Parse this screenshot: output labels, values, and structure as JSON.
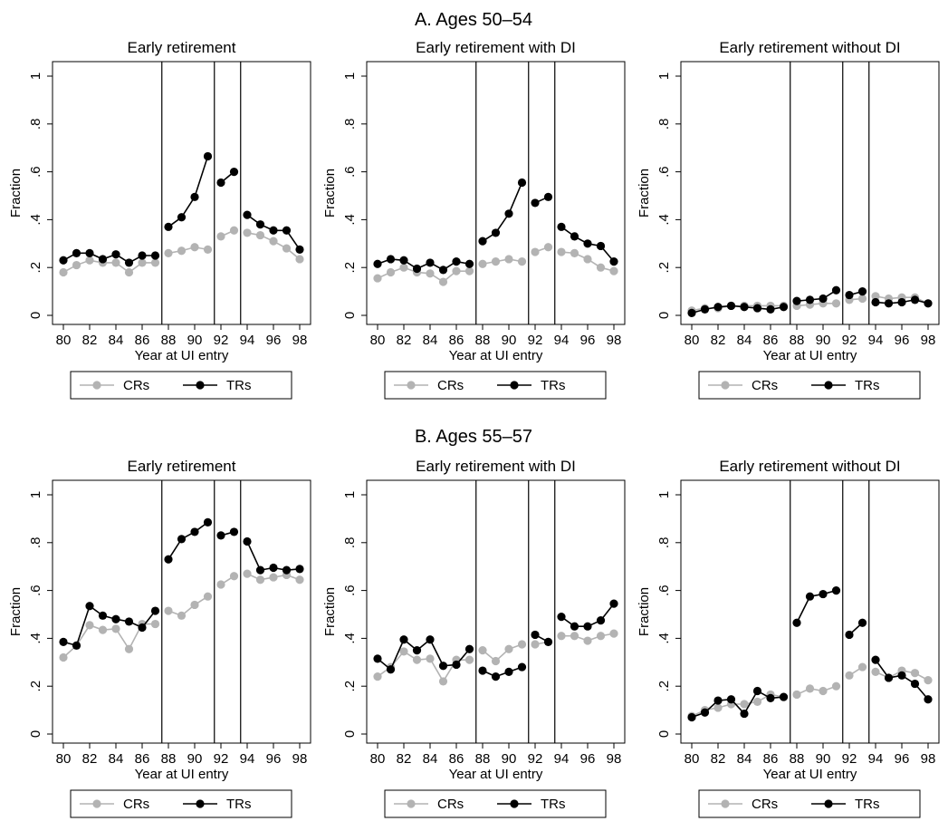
{
  "figure": {
    "panel_titles": [
      "A. Ages 50–54",
      "B. Ages 55–57"
    ],
    "legend": [
      "CRs",
      "TRs"
    ],
    "series_colors": {
      "CRs": "#b3b3b3",
      "TRs": "#000000"
    }
  },
  "chart_data": [
    {
      "type": "line",
      "panel": "A. Ages 50–54",
      "title": "Early retirement",
      "xlabel": "Year at UI entry",
      "ylabel": "Fraction",
      "xlim": [
        80,
        98
      ],
      "ylim": [
        0,
        1
      ],
      "xticks": [
        "80",
        "82",
        "84",
        "86",
        "88",
        "90",
        "92",
        "94",
        "96",
        "98"
      ],
      "yticks": [
        "0",
        ".2",
        ".4",
        ".6",
        ".8",
        "1"
      ],
      "vlines": [
        87.5,
        91.5,
        93.5
      ],
      "grid": false,
      "legend_position": "bottom",
      "series": [
        {
          "name": "CRs",
          "x": [
            80,
            81,
            82,
            83,
            84,
            85,
            86,
            87,
            88,
            89,
            90,
            91,
            92,
            93,
            94,
            95,
            96,
            97,
            98
          ],
          "values": [
            0.18,
            0.21,
            0.23,
            0.22,
            0.22,
            0.18,
            0.22,
            0.22,
            0.26,
            0.27,
            0.285,
            0.275,
            0.33,
            0.355,
            0.345,
            0.335,
            0.31,
            0.28,
            0.235
          ]
        },
        {
          "name": "TRs",
          "x": [
            80,
            81,
            82,
            83,
            84,
            85,
            86,
            87,
            88,
            89,
            90,
            91,
            92,
            93,
            94,
            95,
            96,
            97,
            98
          ],
          "values": [
            0.23,
            0.26,
            0.26,
            0.235,
            0.255,
            0.22,
            0.25,
            0.25,
            0.37,
            0.41,
            0.495,
            0.665,
            0.555,
            0.6,
            0.42,
            0.38,
            0.355,
            0.355,
            0.275
          ]
        }
      ]
    },
    {
      "type": "line",
      "panel": "A. Ages 50–54",
      "title": "Early retirement with DI",
      "xlabel": "Year at UI entry",
      "ylabel": "Fraction",
      "xlim": [
        80,
        98
      ],
      "ylim": [
        0,
        1
      ],
      "xticks": [
        "80",
        "82",
        "84",
        "86",
        "88",
        "90",
        "92",
        "94",
        "96",
        "98"
      ],
      "yticks": [
        "0",
        ".2",
        ".4",
        ".6",
        ".8",
        "1"
      ],
      "vlines": [
        87.5,
        91.5,
        93.5
      ],
      "grid": false,
      "legend_position": "bottom",
      "series": [
        {
          "name": "CRs",
          "x": [
            80,
            81,
            82,
            83,
            84,
            85,
            86,
            87,
            88,
            89,
            90,
            91,
            92,
            93,
            94,
            95,
            96,
            97,
            98
          ],
          "values": [
            0.155,
            0.18,
            0.2,
            0.18,
            0.175,
            0.14,
            0.185,
            0.185,
            0.215,
            0.225,
            0.235,
            0.225,
            0.265,
            0.285,
            0.265,
            0.26,
            0.235,
            0.2,
            0.185
          ]
        },
        {
          "name": "TRs",
          "x": [
            80,
            81,
            82,
            83,
            84,
            85,
            86,
            87,
            88,
            89,
            90,
            91,
            92,
            93,
            94,
            95,
            96,
            97,
            98
          ],
          "values": [
            0.215,
            0.235,
            0.23,
            0.195,
            0.22,
            0.19,
            0.225,
            0.215,
            0.31,
            0.345,
            0.425,
            0.555,
            0.47,
            0.495,
            0.37,
            0.33,
            0.3,
            0.29,
            0.225
          ]
        }
      ]
    },
    {
      "type": "line",
      "panel": "A. Ages 50–54",
      "title": "Early retirement without DI",
      "xlabel": "Year at UI entry",
      "ylabel": "Fraction",
      "xlim": [
        80,
        98
      ],
      "ylim": [
        0,
        1
      ],
      "xticks": [
        "80",
        "82",
        "84",
        "86",
        "88",
        "90",
        "92",
        "94",
        "96",
        "98"
      ],
      "yticks": [
        "0",
        ".2",
        ".4",
        ".6",
        ".8",
        "1"
      ],
      "vlines": [
        87.5,
        91.5,
        93.5
      ],
      "grid": false,
      "legend_position": "bottom",
      "series": [
        {
          "name": "CRs",
          "x": [
            80,
            81,
            82,
            83,
            84,
            85,
            86,
            87,
            88,
            89,
            90,
            91,
            92,
            93,
            94,
            95,
            96,
            97,
            98
          ],
          "values": [
            0.02,
            0.03,
            0.03,
            0.04,
            0.04,
            0.04,
            0.04,
            0.04,
            0.04,
            0.045,
            0.05,
            0.05,
            0.065,
            0.07,
            0.08,
            0.07,
            0.075,
            0.075,
            0.05
          ]
        },
        {
          "name": "TRs",
          "x": [
            80,
            81,
            82,
            83,
            84,
            85,
            86,
            87,
            88,
            89,
            90,
            91,
            92,
            93,
            94,
            95,
            96,
            97,
            98
          ],
          "values": [
            0.01,
            0.025,
            0.035,
            0.04,
            0.035,
            0.03,
            0.025,
            0.035,
            0.06,
            0.065,
            0.07,
            0.105,
            0.085,
            0.1,
            0.055,
            0.05,
            0.055,
            0.065,
            0.05
          ]
        }
      ]
    },
    {
      "type": "line",
      "panel": "B. Ages 55–57",
      "title": "Early retirement",
      "xlabel": "Year at UI entry",
      "ylabel": "Fraction",
      "xlim": [
        80,
        98
      ],
      "ylim": [
        0,
        1
      ],
      "xticks": [
        "80",
        "82",
        "84",
        "86",
        "88",
        "90",
        "92",
        "94",
        "96",
        "98"
      ],
      "yticks": [
        "0",
        ".2",
        ".4",
        ".6",
        ".8",
        "1"
      ],
      "vlines": [
        87.5,
        91.5,
        93.5
      ],
      "grid": false,
      "legend_position": "bottom",
      "series": [
        {
          "name": "CRs",
          "x": [
            80,
            81,
            82,
            83,
            84,
            85,
            86,
            87,
            88,
            89,
            90,
            91,
            92,
            93,
            94,
            95,
            96,
            97,
            98
          ],
          "values": [
            0.32,
            0.37,
            0.455,
            0.435,
            0.44,
            0.355,
            0.46,
            0.46,
            0.515,
            0.495,
            0.54,
            0.575,
            0.625,
            0.66,
            0.67,
            0.645,
            0.655,
            0.665,
            0.645
          ]
        },
        {
          "name": "TRs",
          "x": [
            80,
            81,
            82,
            83,
            84,
            85,
            86,
            87,
            88,
            89,
            90,
            91,
            92,
            93,
            94,
            95,
            96,
            97,
            98
          ],
          "values": [
            0.385,
            0.37,
            0.535,
            0.495,
            0.48,
            0.47,
            0.445,
            0.515,
            0.73,
            0.815,
            0.845,
            0.885,
            0.83,
            0.845,
            0.805,
            0.685,
            0.695,
            0.685,
            0.69
          ]
        }
      ]
    },
    {
      "type": "line",
      "panel": "B. Ages 55–57",
      "title": "Early  retirement with DI",
      "xlabel": "Year at UI entry",
      "ylabel": "Fraction",
      "xlim": [
        80,
        98
      ],
      "ylim": [
        0,
        1
      ],
      "xticks": [
        "80",
        "82",
        "84",
        "86",
        "88",
        "90",
        "92",
        "94",
        "96",
        "98"
      ],
      "yticks": [
        "0",
        ".2",
        ".4",
        ".6",
        ".8",
        "1"
      ],
      "vlines": [
        87.5,
        91.5,
        93.5
      ],
      "grid": false,
      "legend_position": "bottom",
      "series": [
        {
          "name": "CRs",
          "x": [
            80,
            81,
            82,
            83,
            84,
            85,
            86,
            87,
            88,
            89,
            90,
            91,
            92,
            93,
            94,
            95,
            96,
            97,
            98
          ],
          "values": [
            0.24,
            0.28,
            0.345,
            0.31,
            0.315,
            0.22,
            0.31,
            0.31,
            0.35,
            0.305,
            0.355,
            0.375,
            0.375,
            0.385,
            0.41,
            0.41,
            0.39,
            0.41,
            0.42
          ]
        },
        {
          "name": "TRs",
          "x": [
            80,
            81,
            82,
            83,
            84,
            85,
            86,
            87,
            88,
            89,
            90,
            91,
            92,
            93,
            94,
            95,
            96,
            97,
            98
          ],
          "values": [
            0.315,
            0.27,
            0.395,
            0.35,
            0.395,
            0.285,
            0.29,
            0.355,
            0.265,
            0.24,
            0.26,
            0.28,
            0.415,
            0.385,
            0.49,
            0.45,
            0.45,
            0.475,
            0.545
          ]
        }
      ]
    },
    {
      "type": "line",
      "panel": "B. Ages 55–57",
      "title": "Early retirement without DI",
      "xlabel": "Year at UI entry",
      "ylabel": "Fraction",
      "xlim": [
        80,
        98
      ],
      "ylim": [
        0,
        1
      ],
      "xticks": [
        "80",
        "82",
        "84",
        "86",
        "88",
        "90",
        "92",
        "94",
        "96",
        "98"
      ],
      "yticks": [
        "0",
        ".2",
        ".4",
        ".6",
        ".8",
        "1"
      ],
      "vlines": [
        87.5,
        91.5,
        93.5
      ],
      "grid": false,
      "legend_position": "bottom",
      "series": [
        {
          "name": "CRs",
          "x": [
            80,
            81,
            82,
            83,
            84,
            85,
            86,
            87,
            88,
            89,
            90,
            91,
            92,
            93,
            94,
            95,
            96,
            97,
            98
          ],
          "values": [
            0.075,
            0.1,
            0.11,
            0.125,
            0.125,
            0.135,
            0.165,
            0.155,
            0.165,
            0.19,
            0.18,
            0.2,
            0.245,
            0.28,
            0.26,
            0.235,
            0.265,
            0.255,
            0.225
          ]
        },
        {
          "name": "TRs",
          "x": [
            80,
            81,
            82,
            83,
            84,
            85,
            86,
            87,
            88,
            89,
            90,
            91,
            92,
            93,
            94,
            95,
            96,
            97,
            98
          ],
          "values": [
            0.07,
            0.09,
            0.14,
            0.145,
            0.085,
            0.18,
            0.15,
            0.155,
            0.465,
            0.575,
            0.585,
            0.6,
            0.415,
            0.465,
            0.31,
            0.235,
            0.245,
            0.21,
            0.145
          ]
        }
      ]
    }
  ]
}
